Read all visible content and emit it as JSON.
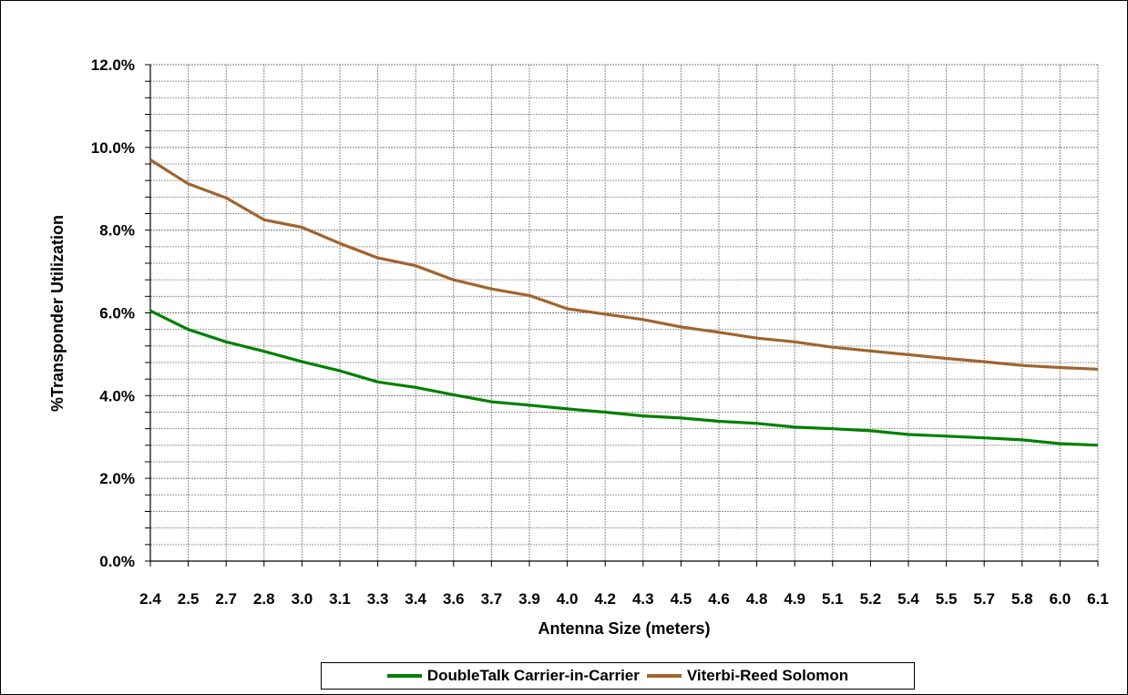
{
  "chart_data": {
    "type": "line",
    "title": "",
    "xlabel": "Antenna Size (meters)",
    "ylabel": "%Transponder Utilization",
    "x": [
      "2.4",
      "2.5",
      "2.7",
      "2.8",
      "3.0",
      "3.1",
      "3.3",
      "3.4",
      "3.6",
      "3.7",
      "3.9",
      "4.0",
      "4.2",
      "4.3",
      "4.5",
      "4.6",
      "4.8",
      "4.9",
      "5.1",
      "5.2",
      "5.4",
      "5.5",
      "5.7",
      "5.8",
      "6.0",
      "6.1"
    ],
    "yticks": [
      "0.0%",
      "2.0%",
      "4.0%",
      "6.0%",
      "8.0%",
      "10.0%",
      "12.0%"
    ],
    "ylim": [
      0,
      12
    ],
    "grid": true,
    "legend_position": "bottom",
    "series": [
      {
        "name": "DoubleTalk Carrier-in-Carrier",
        "color": "#008000",
        "values": [
          6.05,
          5.6,
          5.3,
          5.07,
          4.82,
          4.6,
          4.33,
          4.2,
          4.02,
          3.85,
          3.77,
          3.68,
          3.6,
          3.51,
          3.46,
          3.38,
          3.33,
          3.24,
          3.2,
          3.15,
          3.06,
          3.02,
          2.98,
          2.93,
          2.84,
          2.8
        ]
      },
      {
        "name": "Viterbi-Reed Solomon",
        "color": "#A0642E",
        "values": [
          9.7,
          9.12,
          8.78,
          8.25,
          8.07,
          7.68,
          7.33,
          7.14,
          6.8,
          6.58,
          6.42,
          6.1,
          5.97,
          5.84,
          5.66,
          5.53,
          5.39,
          5.3,
          5.17,
          5.08,
          4.99,
          4.9,
          4.82,
          4.73,
          4.68,
          4.64
        ]
      }
    ]
  }
}
